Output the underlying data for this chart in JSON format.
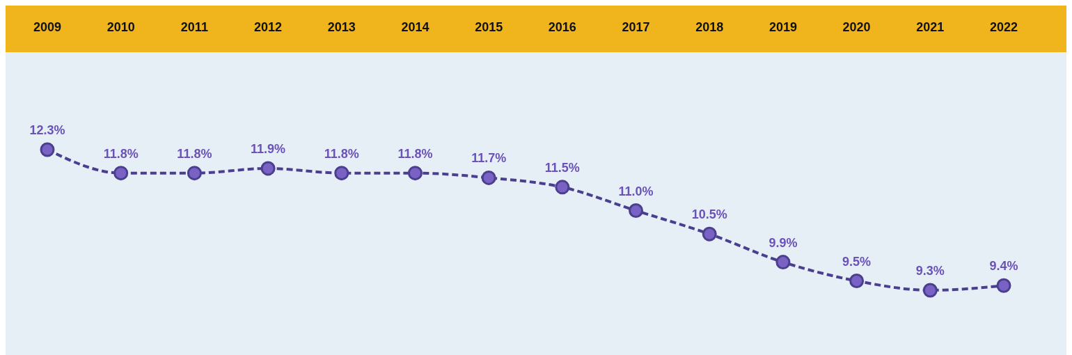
{
  "chart_data": {
    "type": "line",
    "categories": [
      "2009",
      "2010",
      "2011",
      "2012",
      "2013",
      "2014",
      "2015",
      "2016",
      "2017",
      "2018",
      "2019",
      "2020",
      "2021",
      "2022"
    ],
    "series": [
      {
        "color": "#4a3f8f",
        "values": [
          12.3,
          11.8,
          11.8,
          11.9,
          11.8,
          11.8,
          11.7,
          11.5,
          11.0,
          10.5,
          9.9,
          9.5,
          9.3,
          9.4
        ],
        "value_labels": [
          "12.3%",
          "11.8%",
          "11.8%",
          "11.9%",
          "11.8%",
          "11.8%",
          "11.7%",
          "11.5%",
          "11.0%",
          "10.5%",
          "9.9%",
          "9.5%",
          "9.3%",
          "9.4%"
        ]
      }
    ],
    "tick_labels": "x",
    "marker": "circle",
    "line_style": "dashed"
  }
}
